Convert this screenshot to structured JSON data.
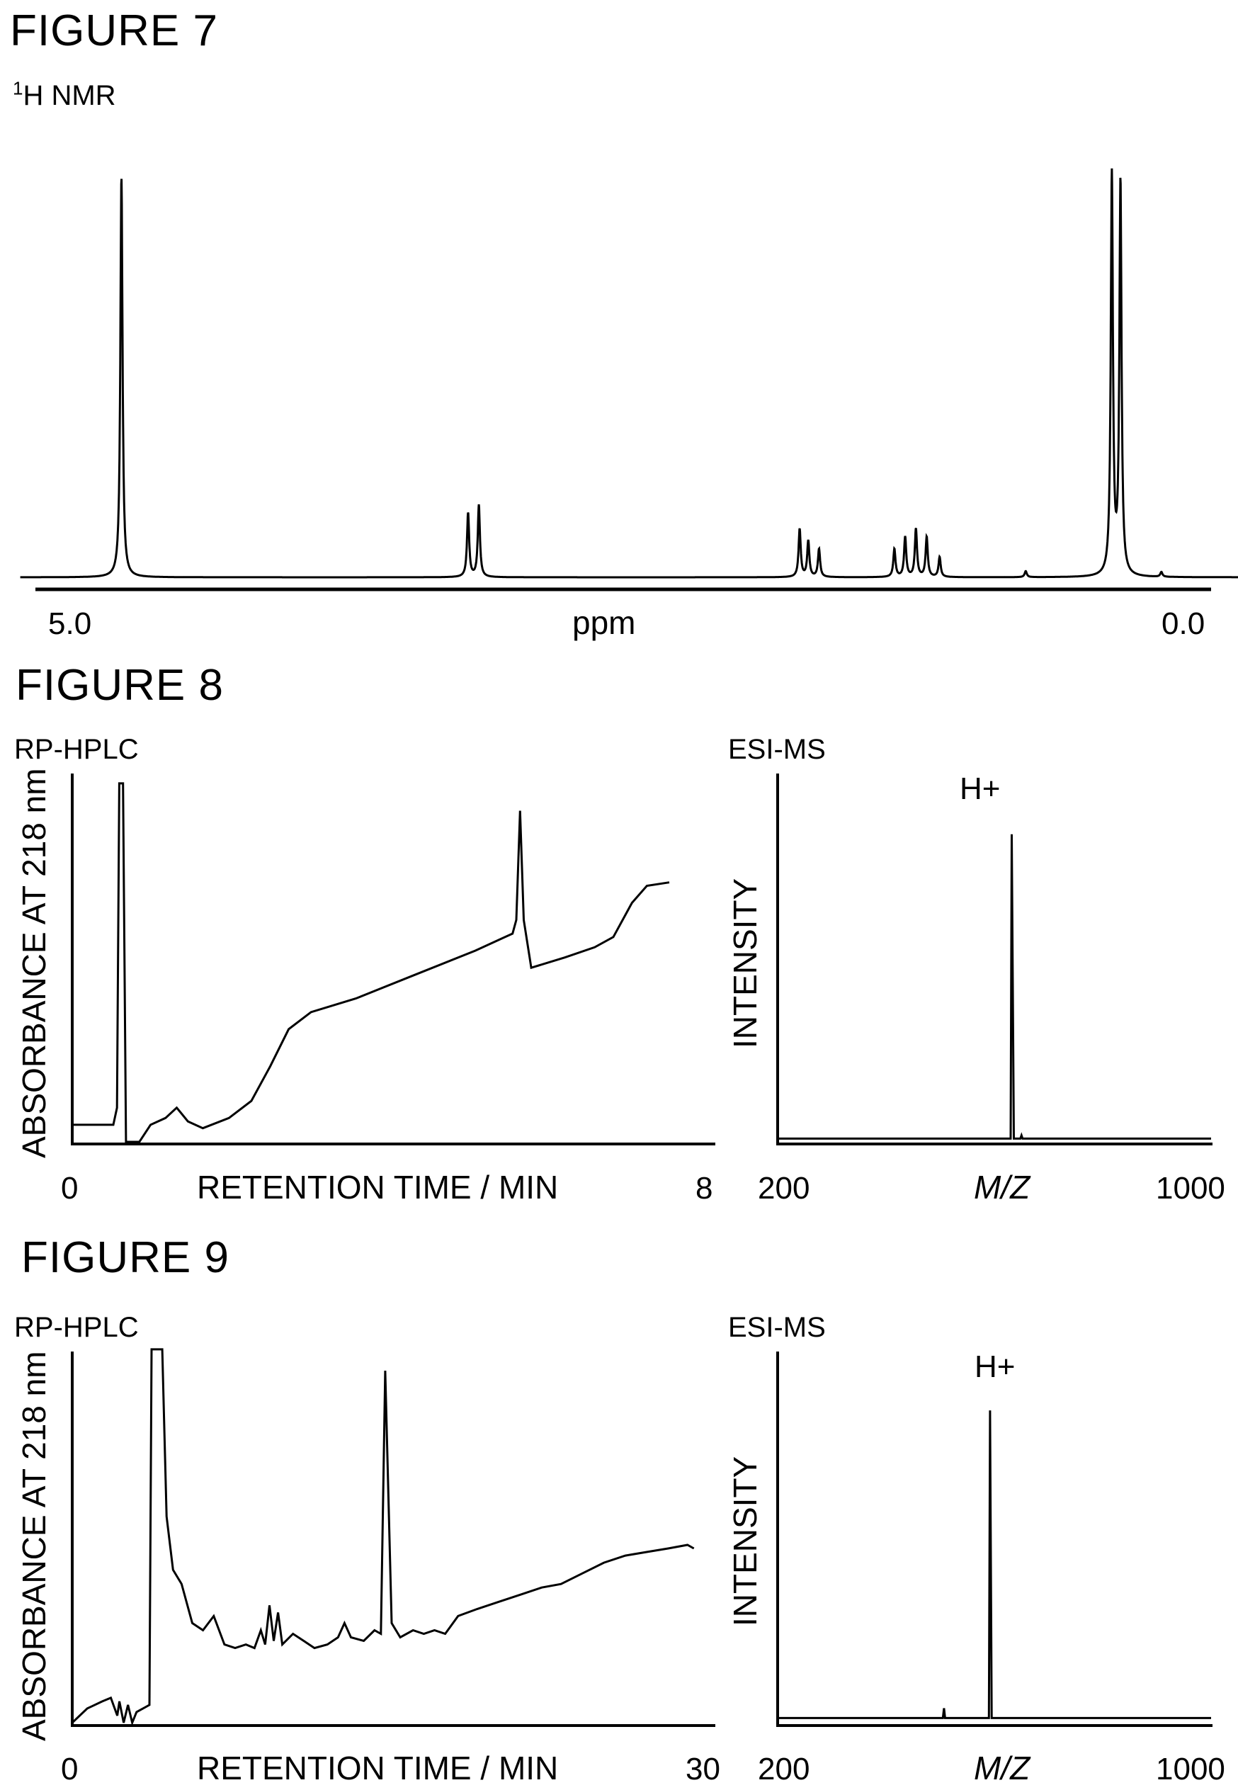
{
  "figures": [
    {
      "title": "FIGURE 7"
    },
    {
      "title": "FIGURE 8"
    },
    {
      "title": "FIGURE 9"
    }
  ],
  "chart_data": [
    {
      "figure": "FIGURE 7",
      "type": "line",
      "title": "¹H NMR",
      "xlabel": "ppm",
      "ylabel": "",
      "x_tick_labels": [
        "5.0",
        "0.0"
      ],
      "xlim": [
        5.0,
        0.0
      ],
      "peaks": [
        {
          "ppm": 4.88,
          "height": 1.0
        },
        {
          "ppm": 3.27,
          "height": 0.16
        },
        {
          "ppm": 3.22,
          "height": 0.18
        },
        {
          "ppm": 1.73,
          "height": 0.12
        },
        {
          "ppm": 1.69,
          "height": 0.09
        },
        {
          "ppm": 1.64,
          "height": 0.07
        },
        {
          "ppm": 1.29,
          "height": 0.07
        },
        {
          "ppm": 1.24,
          "height": 0.1
        },
        {
          "ppm": 1.19,
          "height": 0.12
        },
        {
          "ppm": 1.14,
          "height": 0.1
        },
        {
          "ppm": 1.08,
          "height": 0.05
        },
        {
          "ppm": 0.28,
          "height": 1.0
        },
        {
          "ppm": 0.24,
          "height": 0.98
        },
        {
          "ppm": 0.68,
          "height": 0.015
        },
        {
          "ppm": 0.05,
          "height": 0.012
        }
      ]
    },
    {
      "figure": "FIGURE 8",
      "type": "line",
      "title": "RP-HPLC",
      "xlabel": "RETENTION TIME / MIN",
      "ylabel": "ABSORBANCE AT 218 nm",
      "x_tick_labels": [
        "0",
        "8"
      ],
      "xlim": [
        0,
        8
      ],
      "points": [
        [
          0.0,
          0.05
        ],
        [
          0.55,
          0.05
        ],
        [
          0.6,
          0.1
        ],
        [
          0.63,
          1.05
        ],
        [
          0.68,
          1.05
        ],
        [
          0.72,
          0.0
        ],
        [
          0.9,
          0.0
        ],
        [
          1.05,
          0.05
        ],
        [
          1.25,
          0.07
        ],
        [
          1.4,
          0.1
        ],
        [
          1.55,
          0.06
        ],
        [
          1.75,
          0.04
        ],
        [
          2.1,
          0.07
        ],
        [
          2.4,
          0.12
        ],
        [
          2.65,
          0.22
        ],
        [
          2.9,
          0.33
        ],
        [
          3.2,
          0.38
        ],
        [
          3.8,
          0.42
        ],
        [
          4.6,
          0.49
        ],
        [
          5.4,
          0.56
        ],
        [
          5.8,
          0.6
        ],
        [
          5.9,
          0.61
        ],
        [
          5.95,
          0.65
        ],
        [
          6.0,
          0.97
        ],
        [
          6.05,
          0.65
        ],
        [
          6.15,
          0.51
        ],
        [
          6.6,
          0.54
        ],
        [
          7.0,
          0.57
        ],
        [
          7.25,
          0.6
        ],
        [
          7.5,
          0.7
        ],
        [
          7.7,
          0.75
        ],
        [
          8.0,
          0.76
        ]
      ]
    },
    {
      "figure": "FIGURE 8",
      "type": "line",
      "title": "ESI-MS",
      "xlabel": "M/Z",
      "ylabel": "INTENSITY",
      "x_tick_labels": [
        "200",
        "1000"
      ],
      "xlim": [
        200,
        1000
      ],
      "annotations": [
        {
          "text": "H+",
          "x": 634
        }
      ],
      "points": [
        [
          200,
          0.01
        ],
        [
          630,
          0.01
        ],
        [
          632,
          0.95
        ],
        [
          636,
          0.01
        ],
        [
          648,
          0.01
        ],
        [
          650,
          0.02
        ],
        [
          652,
          0.01
        ],
        [
          1000,
          0.01
        ]
      ]
    },
    {
      "figure": "FIGURE 9",
      "type": "line",
      "title": "RP-HPLC",
      "xlabel": "RETENTION TIME / MIN",
      "ylabel": "ABSORBANCE AT 218 nm",
      "x_tick_labels": [
        "0",
        "30"
      ],
      "xlim": [
        0,
        30
      ],
      "points": [
        [
          0.0,
          0.0
        ],
        [
          0.7,
          0.04
        ],
        [
          1.4,
          0.06
        ],
        [
          1.8,
          0.07
        ],
        [
          2.1,
          0.02
        ],
        [
          2.2,
          0.06
        ],
        [
          2.4,
          0.0
        ],
        [
          2.6,
          0.05
        ],
        [
          2.8,
          0.0
        ],
        [
          3.0,
          0.03
        ],
        [
          3.3,
          0.04
        ],
        [
          3.6,
          0.05
        ],
        [
          3.7,
          1.05
        ],
        [
          4.2,
          1.05
        ],
        [
          4.4,
          0.58
        ],
        [
          4.7,
          0.43
        ],
        [
          5.1,
          0.39
        ],
        [
          5.6,
          0.28
        ],
        [
          6.1,
          0.26
        ],
        [
          6.6,
          0.3
        ],
        [
          7.1,
          0.22
        ],
        [
          7.6,
          0.21
        ],
        [
          8.1,
          0.22
        ],
        [
          8.5,
          0.21
        ],
        [
          8.8,
          0.26
        ],
        [
          9.0,
          0.22
        ],
        [
          9.2,
          0.33
        ],
        [
          9.4,
          0.23
        ],
        [
          9.6,
          0.31
        ],
        [
          9.8,
          0.22
        ],
        [
          10.3,
          0.25
        ],
        [
          10.8,
          0.23
        ],
        [
          11.3,
          0.21
        ],
        [
          11.9,
          0.22
        ],
        [
          12.4,
          0.24
        ],
        [
          12.7,
          0.28
        ],
        [
          13.0,
          0.24
        ],
        [
          13.6,
          0.23
        ],
        [
          14.1,
          0.26
        ],
        [
          14.4,
          0.25
        ],
        [
          14.6,
          0.99
        ],
        [
          14.9,
          0.28
        ],
        [
          15.3,
          0.24
        ],
        [
          15.9,
          0.26
        ],
        [
          16.4,
          0.25
        ],
        [
          16.9,
          0.26
        ],
        [
          17.4,
          0.25
        ],
        [
          18.0,
          0.3
        ],
        [
          18.9,
          0.32
        ],
        [
          19.9,
          0.34
        ],
        [
          20.9,
          0.36
        ],
        [
          21.9,
          0.38
        ],
        [
          22.8,
          0.39
        ],
        [
          23.8,
          0.42
        ],
        [
          24.8,
          0.45
        ],
        [
          25.8,
          0.47
        ],
        [
          26.8,
          0.48
        ],
        [
          27.8,
          0.49
        ],
        [
          28.7,
          0.5
        ],
        [
          29.0,
          0.49
        ]
      ]
    },
    {
      "figure": "FIGURE 9",
      "type": "line",
      "title": "ESI-MS",
      "xlabel": "M/Z",
      "ylabel": "INTENSITY",
      "x_tick_labels": [
        "200",
        "1000"
      ],
      "xlim": [
        200,
        1000
      ],
      "annotations": [
        {
          "text": "H+",
          "x": 592
        }
      ],
      "points": [
        [
          200,
          0.01
        ],
        [
          505,
          0.01
        ],
        [
          507,
          0.04
        ],
        [
          509,
          0.01
        ],
        [
          590,
          0.01
        ],
        [
          592,
          0.95
        ],
        [
          595,
          0.01
        ],
        [
          1000,
          0.01
        ]
      ]
    }
  ]
}
